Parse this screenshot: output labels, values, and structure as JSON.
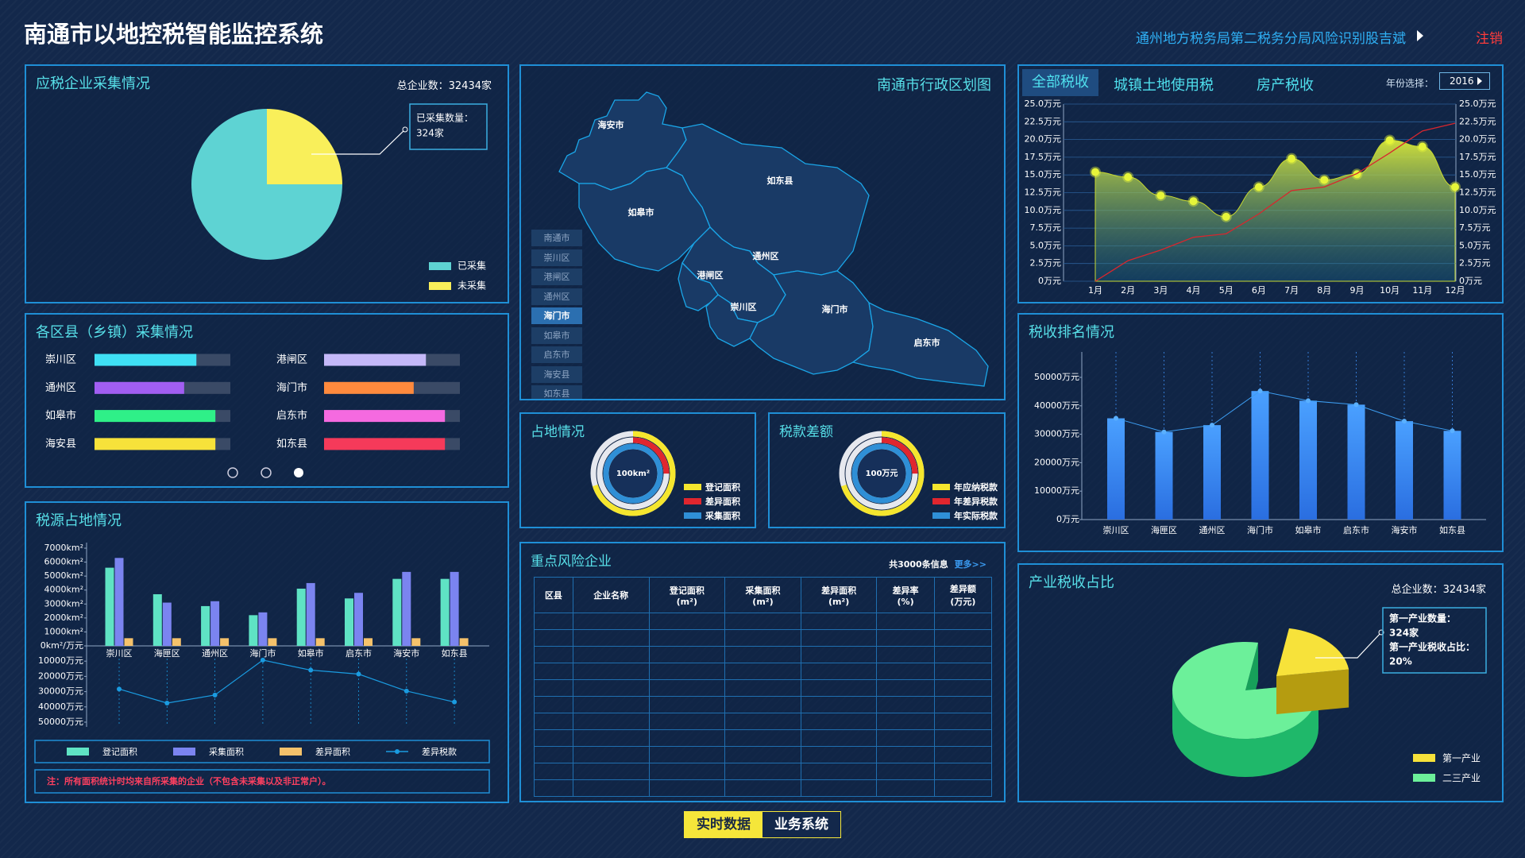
{
  "header": {
    "title": "南通市以地控税智能监控系统",
    "user": "通州地方税务局第二税务分局风险识别股吉斌",
    "logout": "注销"
  },
  "chart_data": [
    {
      "type": "pie",
      "title": "应税企业采集情况",
      "total": "总企业数：32434家",
      "categories": [
        "已采集",
        "未采集"
      ],
      "values": [
        75,
        25
      ],
      "colors": [
        "#5ed3d3",
        "#f9ef5a"
      ],
      "annotation": [
        "已采集数量：",
        "324家"
      ]
    },
    {
      "type": "progress",
      "title": "各区县（乡镇）采集情况",
      "categories": [
        "崇川区",
        "通州区",
        "如皋市",
        "海安县",
        "港闸区",
        "海门市",
        "启东市",
        "如东县"
      ],
      "values": [
        75,
        66,
        89,
        89,
        75,
        66,
        89,
        89
      ],
      "colors": [
        "#3fe0f5",
        "#a15ef2",
        "#2ff088",
        "#f7e23a",
        "#c4b8f8",
        "#ff8a3d",
        "#f56ae0",
        "#f53a5a"
      ],
      "xlim": [
        0,
        100
      ]
    },
    {
      "type": "combo",
      "title": "税源占地情况",
      "categories": [
        "崇川区",
        "海匣区",
        "通州区",
        "海门市",
        "如皋市",
        "启东市",
        "海安市",
        "如东县"
      ],
      "ylim": [
        0,
        7000
      ],
      "yticks": [
        {
          "value": 0,
          "label": "0km²/万元"
        },
        {
          "value": 1000,
          "label": "1000km²"
        },
        {
          "value": 2000,
          "label": "2000km²"
        },
        {
          "value": 3000,
          "label": "3000km²"
        },
        {
          "value": 4000,
          "label": "4000km²"
        },
        {
          "value": 5000,
          "label": "5000km²"
        },
        {
          "value": 6000,
          "label": "6000km²"
        },
        {
          "value": 7000,
          "label": "7000km²"
        }
      ],
      "y2lim": [
        0,
        50000
      ],
      "y2_inverted": true,
      "y2ticks": [
        {
          "value": 10000,
          "label": "10000万元"
        },
        {
          "value": 20000,
          "label": "20000万元"
        },
        {
          "value": 30000,
          "label": "30000万元"
        },
        {
          "value": 40000,
          "label": "40000万元"
        },
        {
          "value": 50000,
          "label": "50000万元"
        }
      ],
      "series": [
        {
          "name": "登记面积",
          "type": "bar",
          "color": "#5fe3c4",
          "values": [
            5600,
            3700,
            2850,
            2200,
            4100,
            3400,
            4800,
            4800
          ]
        },
        {
          "name": "采集面积",
          "type": "bar",
          "color": "#7b84f0",
          "values": [
            6300,
            3100,
            3200,
            2400,
            4500,
            3800,
            5300,
            5300
          ]
        },
        {
          "name": "差异面积",
          "type": "bar",
          "color": "#f5c26b",
          "values": [
            550,
            550,
            550,
            550,
            550,
            550,
            550,
            550
          ]
        },
        {
          "name": "差异税款",
          "type": "line",
          "axis": "y2",
          "color": "#1a9be0",
          "values": [
            28300,
            37500,
            32200,
            9300,
            15900,
            18500,
            29600,
            36800
          ]
        }
      ],
      "note": "注：所有面积统计时均来自所采集的企业（不包含未采集以及非正常户）。"
    },
    {
      "type": "rings",
      "title": "占地情况",
      "center_label": "100km²",
      "categories": [
        "登记面积",
        "差异面积",
        "采集面积"
      ],
      "values": [
        70,
        25,
        100
      ],
      "colors": [
        "#f5e62e",
        "#e0262e",
        "#2f8fd6"
      ],
      "ylim": [
        0,
        100
      ]
    },
    {
      "type": "rings",
      "title": "税款差额",
      "center_label": "100万元",
      "categories": [
        "年应纳税款",
        "年差异税款",
        "年实际税款"
      ],
      "values": [
        70,
        25,
        100
      ],
      "colors": [
        "#f5e62e",
        "#e0262e",
        "#2f8fd6"
      ],
      "ylim": [
        0,
        100
      ]
    },
    {
      "type": "area-line",
      "tabs": [
        "全部税收",
        "城镇土地使用税",
        "房产税收"
      ],
      "year_label": "年份选择：",
      "year": "2016",
      "categories": [
        "1月",
        "2月",
        "3月",
        "4月",
        "5月",
        "6月",
        "7月",
        "8月",
        "9月",
        "10月",
        "11月",
        "12月"
      ],
      "ylim": [
        0,
        25
      ],
      "yticks": [
        {
          "value": 0,
          "label": "0万元"
        },
        {
          "value": 2.5,
          "label": "2.5万元"
        },
        {
          "value": 5,
          "label": "5.0万元"
        },
        {
          "value": 7.5,
          "label": "7.5万元"
        },
        {
          "value": 10,
          "label": "10.0万元"
        },
        {
          "value": 12.5,
          "label": "12.5万元"
        },
        {
          "value": 15,
          "label": "15.0万元"
        },
        {
          "value": 17.5,
          "label": "17.5万元"
        },
        {
          "value": 20,
          "label": "20.0万元"
        },
        {
          "value": 22.5,
          "label": "22.5万元"
        },
        {
          "value": 25,
          "label": "25.0万元"
        }
      ],
      "grid": true,
      "series": [
        {
          "type": "area",
          "color": "#e6f53a",
          "values": [
            15.4,
            14.7,
            12.1,
            11.3,
            9.1,
            13.3,
            17.3,
            14.3,
            15.1,
            19.9,
            19.0,
            13.3
          ]
        },
        {
          "type": "line",
          "color": "#d8262e",
          "values": [
            0,
            2.9,
            4.4,
            6.2,
            6.7,
            9.5,
            12.8,
            13.3,
            15.2,
            18.1,
            21.2,
            22.3
          ]
        }
      ]
    },
    {
      "type": "bar",
      "title": "税收排名情况",
      "categories": [
        "崇川区",
        "海匣区",
        "通州区",
        "海门市",
        "如皋市",
        "启东市",
        "海安市",
        "如东县"
      ],
      "values": [
        35600,
        30800,
        33200,
        45200,
        41800,
        40400,
        34600,
        31200
      ],
      "color": "#3d8ef2",
      "ylim": [
        0,
        50000
      ],
      "yticks": [
        {
          "value": 0,
          "label": "0万元"
        },
        {
          "value": 10000,
          "label": "10000万元"
        },
        {
          "value": 20000,
          "label": "20000万元"
        },
        {
          "value": 30000,
          "label": "30000万元"
        },
        {
          "value": 40000,
          "label": "40000万元"
        },
        {
          "value": 50000,
          "label": "50000万元"
        }
      ]
    },
    {
      "type": "pie3d",
      "title": "产业税收占比",
      "total": "总企业数：32434家",
      "categories": [
        "第一产业",
        "二三产业"
      ],
      "values": [
        20,
        80
      ],
      "colors": [
        "#f7e23a",
        "#6cf09a"
      ],
      "annotation": [
        "第一产业数量：",
        "324家",
        "第一产业税收占比：",
        "20%"
      ]
    }
  ],
  "map": {
    "title": "南通市行政区划图",
    "regions": [
      "海安市",
      "如东县",
      "如皋市",
      "通州区",
      "港闸区",
      "崇川区",
      "海门市",
      "启东市"
    ],
    "list": [
      "南通市",
      "崇川区",
      "港闸区",
      "通州区",
      "海门市",
      "如皋市",
      "启东市",
      "海安县",
      "如东县"
    ],
    "selected": 4
  },
  "table": {
    "title": "重点风险企业",
    "count": "共3000条信息",
    "more": "更多>>",
    "headers": [
      "区县",
      "企业名称",
      "登记面积\n(m²)",
      "采集面积\n(m²)",
      "差异面积\n(m²)",
      "差异率\n(%)",
      "差异额\n(万元)"
    ]
  },
  "footer": {
    "buttons": [
      "实时数据",
      "业务系统"
    ],
    "active": 0
  }
}
